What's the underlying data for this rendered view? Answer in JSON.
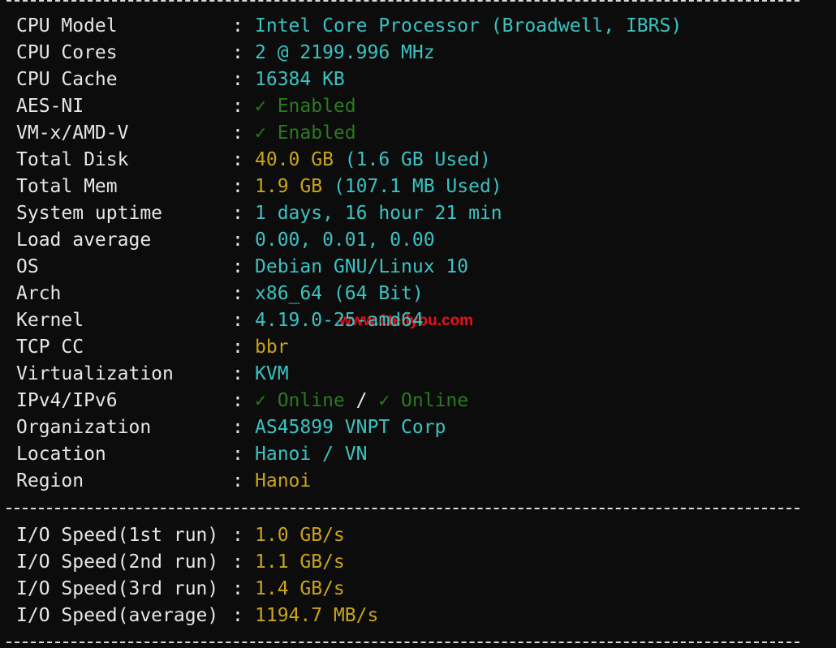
{
  "separator": ":",
  "sections": [
    {
      "rows": [
        {
          "label": "CPU Model",
          "value": [
            {
              "text": "Intel Core Processor (Broadwell, IBRS)",
              "color": "#3cc2c2"
            }
          ]
        },
        {
          "label": "CPU Cores",
          "value": [
            {
              "text": "2 @ 2199.996 MHz",
              "color": "#3cc2c2"
            }
          ]
        },
        {
          "label": "CPU Cache",
          "value": [
            {
              "text": "16384 KB",
              "color": "#3cc2c2"
            }
          ]
        },
        {
          "label": "AES-NI",
          "value": [
            {
              "text": "✓ Enabled",
              "color": "#2a7a1e"
            }
          ]
        },
        {
          "label": "VM-x/AMD-V",
          "value": [
            {
              "text": "✓ Enabled",
              "color": "#2a7a1e"
            }
          ]
        },
        {
          "label": "Total Disk",
          "value": [
            {
              "text": "40.0 GB",
              "color": "#c9a41a"
            },
            {
              "text": " (1.6 GB Used)",
              "color": "#3cc2c2"
            }
          ]
        },
        {
          "label": "Total Mem",
          "value": [
            {
              "text": "1.9 GB",
              "color": "#c9a41a"
            },
            {
              "text": " (107.1 MB Used)",
              "color": "#3cc2c2"
            }
          ]
        },
        {
          "label": "System uptime",
          "value": [
            {
              "text": "1 days, 16 hour 21 min",
              "color": "#3cc2c2"
            }
          ]
        },
        {
          "label": "Load average",
          "value": [
            {
              "text": "0.00, 0.01, 0.00",
              "color": "#3cc2c2"
            }
          ]
        },
        {
          "label": "OS",
          "value": [
            {
              "text": "Debian GNU/Linux 10",
              "color": "#3cc2c2"
            }
          ]
        },
        {
          "label": "Arch",
          "value": [
            {
              "text": "x86_64 (64 Bit)",
              "color": "#3cc2c2"
            }
          ]
        },
        {
          "label": "Kernel",
          "value": [
            {
              "text": "4.19.0-25-amd64",
              "color": "#3cc2c2"
            }
          ]
        },
        {
          "label": "TCP CC",
          "value": [
            {
              "text": "bbr",
              "color": "#c9a41a"
            }
          ]
        },
        {
          "label": "Virtualization",
          "value": [
            {
              "text": "KVM",
              "color": "#3cc2c2"
            }
          ]
        },
        {
          "label": "IPv4/IPv6",
          "value": [
            {
              "text": "✓ Online",
              "color": "#2a7a1e"
            },
            {
              "text": " / ",
              "color": "#e6e6e6"
            },
            {
              "text": "✓ Online",
              "color": "#2a7a1e"
            }
          ]
        },
        {
          "label": "Organization",
          "value": [
            {
              "text": "AS45899 VNPT Corp",
              "color": "#3cc2c2"
            }
          ]
        },
        {
          "label": "Location",
          "value": [
            {
              "text": "Hanoi / VN",
              "color": "#3cc2c2"
            }
          ]
        },
        {
          "label": "Region",
          "value": [
            {
              "text": "Hanoi",
              "color": "#c9a41a"
            }
          ]
        }
      ]
    },
    {
      "rows": [
        {
          "label": "I/O Speed(1st run)",
          "value": [
            {
              "text": "1.0 GB/s",
              "color": "#c9a41a"
            }
          ]
        },
        {
          "label": "I/O Speed(2nd run)",
          "value": [
            {
              "text": "1.1 GB/s",
              "color": "#c9a41a"
            }
          ]
        },
        {
          "label": "I/O Speed(3rd run)",
          "value": [
            {
              "text": "1.4 GB/s",
              "color": "#c9a41a"
            }
          ]
        },
        {
          "label": "I/O Speed(average)",
          "value": [
            {
              "text": "1194.7 MB/s",
              "color": "#c9a41a"
            }
          ]
        }
      ]
    }
  ],
  "watermark": "www.1tellyou.com"
}
